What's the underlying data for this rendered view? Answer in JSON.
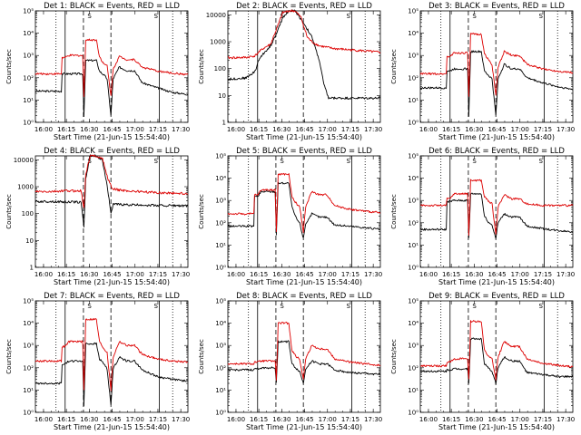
{
  "figure": {
    "xlabel": "Start Time (21-Jun-15 15:54:40)",
    "ylabel": "Counts/sec",
    "x_ticks": [
      "16:00",
      "16:15",
      "16:30",
      "16:45",
      "17:00",
      "17:15",
      "17:30"
    ],
    "x_tick_minutes": [
      5.33,
      20.33,
      35.33,
      50.33,
      65.33,
      80.33,
      95.33
    ],
    "x_range_minutes": [
      0,
      100
    ],
    "solid_lines_minutes": [
      19.5,
      81.2
    ],
    "dashed_lines_minutes": [
      31.5,
      49.5
    ],
    "dotted_lines_minutes": [
      13.5,
      90.0
    ],
    "marker_letters": [
      "S",
      "S"
    ],
    "marker_minutes": [
      35.5,
      79.0
    ],
    "colors": {
      "events": "#000000",
      "lld": "#dd0000",
      "background": "#ffffff"
    }
  },
  "chart_data": [
    {
      "type": "line",
      "scale": "log",
      "ylim": [
        1,
        100000
      ],
      "title": "Det 1: BLACK = Events, RED = LLD",
      "y_tick_values": [
        1,
        10,
        100,
        1000,
        10000,
        100000
      ],
      "y_tick_labels": [
        "10⁰",
        "10¹",
        "10²",
        "10³",
        "10⁴",
        "10⁵"
      ],
      "series": [
        {
          "name": "Events",
          "color": "#000000",
          "x": [
            0,
            17,
            17.5,
            19.5,
            22,
            31,
            31.8,
            33,
            40,
            42,
            45,
            47,
            49.5,
            51,
            55,
            60,
            65,
            70,
            80,
            90,
            100
          ],
          "y": [
            25,
            25,
            150,
            150,
            150,
            150,
            2,
            600,
            600,
            200,
            130,
            90,
            2,
            90,
            300,
            210,
            210,
            60,
            35,
            22,
            18
          ]
        },
        {
          "name": "LLD",
          "color": "#dd0000",
          "x": [
            0,
            17,
            17.5,
            19.5,
            22,
            31,
            31.8,
            33,
            40,
            42,
            45,
            47,
            49.5,
            51,
            55,
            60,
            65,
            70,
            80,
            90,
            100
          ],
          "y": [
            150,
            150,
            800,
            800,
            1000,
            1000,
            15,
            5000,
            5000,
            900,
            400,
            350,
            15,
            250,
            900,
            650,
            650,
            300,
            200,
            160,
            140
          ]
        }
      ]
    },
    {
      "type": "line",
      "scale": "log",
      "ylim": [
        1,
        14000
      ],
      "title": "Det 2: BLACK = Events, RED = LLD",
      "y_tick_values": [
        1,
        10,
        100,
        1000,
        10000
      ],
      "y_tick_labels": [
        "1",
        "10",
        "100",
        "1000",
        "10000"
      ],
      "series": [
        {
          "name": "Events",
          "color": "#000000",
          "x": [
            0,
            12,
            18,
            20,
            24,
            28,
            32,
            36,
            40,
            44,
            48,
            52,
            55,
            60,
            63,
            66,
            70,
            80,
            90,
            100
          ],
          "y": [
            40,
            45,
            80,
            200,
            400,
            700,
            2000,
            8000,
            14000,
            14000,
            7000,
            3000,
            1500,
            200,
            25,
            8,
            8,
            8,
            8,
            8
          ]
        },
        {
          "name": "LLD",
          "color": "#dd0000",
          "x": [
            0,
            12,
            18,
            20,
            24,
            28,
            32,
            36,
            40,
            44,
            48,
            52,
            55,
            60,
            66,
            70,
            80,
            90,
            100
          ],
          "y": [
            250,
            260,
            300,
            400,
            600,
            800,
            3000,
            12000,
            14000,
            14000,
            8000,
            1500,
            1000,
            700,
            600,
            550,
            500,
            450,
            400
          ]
        }
      ]
    },
    {
      "type": "line",
      "scale": "log",
      "ylim": [
        1,
        100000
      ],
      "title": "Det 3: BLACK = Events, RED = LLD",
      "y_tick_values": [
        1,
        10,
        100,
        1000,
        10000,
        100000
      ],
      "y_tick_labels": [
        "10⁰",
        "10¹",
        "10²",
        "10³",
        "10⁴",
        "10⁵"
      ],
      "series": [
        {
          "name": "Events",
          "color": "#000000",
          "x": [
            0,
            17,
            17.5,
            19.5,
            22,
            31,
            31.8,
            33,
            40,
            42,
            45,
            47,
            49.5,
            51,
            55,
            60,
            65,
            70,
            80,
            90,
            100
          ],
          "y": [
            35,
            35,
            200,
            200,
            250,
            250,
            2,
            1500,
            1500,
            200,
            120,
            90,
            2,
            90,
            400,
            250,
            250,
            100,
            60,
            40,
            30
          ]
        },
        {
          "name": "LLD",
          "color": "#dd0000",
          "x": [
            0,
            17,
            17.5,
            19.5,
            22,
            31,
            31.8,
            33,
            40,
            42,
            45,
            47,
            49.5,
            51,
            55,
            60,
            65,
            70,
            80,
            90,
            100
          ],
          "y": [
            150,
            150,
            900,
            900,
            1300,
            1300,
            15,
            9000,
            9000,
            1200,
            600,
            400,
            15,
            300,
            1500,
            1000,
            1000,
            400,
            250,
            200,
            170
          ]
        }
      ]
    },
    {
      "type": "line",
      "scale": "log",
      "ylim": [
        1,
        14000
      ],
      "title": "Det 4: BLACK = Events, RED = LLD",
      "y_tick_values": [
        1,
        10,
        100,
        1000,
        10000
      ],
      "y_tick_labels": [
        "1",
        "10",
        "100",
        "1000",
        "10000"
      ],
      "series": [
        {
          "name": "Events",
          "color": "#000000",
          "x": [
            0,
            10,
            20,
            26,
            30,
            31.8,
            33,
            36,
            40,
            44,
            47,
            49.5,
            51,
            55,
            60,
            70,
            80,
            90,
            100
          ],
          "y": [
            280,
            280,
            270,
            270,
            260,
            30,
            2000,
            14000,
            14000,
            9000,
            1200,
            100,
            220,
            220,
            210,
            210,
            200,
            200,
            190
          ]
        },
        {
          "name": "LLD",
          "color": "#dd0000",
          "x": [
            0,
            10,
            20,
            26,
            30,
            31.8,
            33,
            36,
            40,
            44,
            47,
            50,
            52,
            55,
            60,
            70,
            80,
            90,
            100
          ],
          "y": [
            650,
            650,
            700,
            700,
            700,
            150,
            3000,
            14000,
            14000,
            11000,
            2500,
            900,
            800,
            750,
            700,
            650,
            600,
            580,
            550
          ]
        }
      ]
    },
    {
      "type": "line",
      "scale": "log",
      "ylim": [
        1,
        100000
      ],
      "title": "Det 5: BLACK = Events, RED = LLD",
      "y_tick_values": [
        1,
        10,
        100,
        1000,
        10000,
        100000
      ],
      "y_tick_labels": [
        "10⁰",
        "10¹",
        "10²",
        "10³",
        "10⁴",
        "10⁵"
      ],
      "series": [
        {
          "name": "Events",
          "color": "#000000",
          "x": [
            0,
            17,
            17.5,
            19.5,
            22,
            31,
            31.8,
            33,
            40,
            42,
            45,
            47,
            49.5,
            51,
            55,
            60,
            65,
            70,
            80,
            90,
            100
          ],
          "y": [
            70,
            70,
            1500,
            1500,
            2500,
            2500,
            30,
            6000,
            6000,
            500,
            150,
            100,
            20,
            90,
            250,
            180,
            180,
            80,
            70,
            60,
            50
          ]
        },
        {
          "name": "LLD",
          "color": "#dd0000",
          "x": [
            0,
            17,
            17.5,
            19.5,
            22,
            31,
            31.8,
            33,
            40,
            42,
            45,
            47,
            49.5,
            51,
            55,
            60,
            65,
            70,
            80,
            90,
            100
          ],
          "y": [
            250,
            250,
            1800,
            1800,
            3000,
            3000,
            40,
            15000,
            15000,
            1500,
            700,
            550,
            40,
            500,
            2500,
            1800,
            1800,
            600,
            400,
            330,
            280
          ]
        }
      ]
    },
    {
      "type": "line",
      "scale": "log",
      "ylim": [
        1,
        100000
      ],
      "title": "Det 6: BLACK = Events, RED = LLD",
      "y_tick_values": [
        1,
        10,
        100,
        1000,
        10000,
        100000
      ],
      "y_tick_labels": [
        "10⁰",
        "10¹",
        "10²",
        "10³",
        "10⁴",
        "10⁵"
      ],
      "series": [
        {
          "name": "Events",
          "color": "#000000",
          "x": [
            0,
            17,
            17.5,
            19.5,
            22,
            31,
            31.8,
            33,
            40,
            42,
            45,
            47,
            49.5,
            51,
            55,
            60,
            65,
            70,
            80,
            90,
            100
          ],
          "y": [
            50,
            50,
            900,
            900,
            1000,
            1000,
            20,
            2000,
            2000,
            200,
            100,
            80,
            20,
            100,
            250,
            180,
            180,
            70,
            55,
            45,
            40
          ]
        },
        {
          "name": "LLD",
          "color": "#dd0000",
          "x": [
            0,
            17,
            17.5,
            19.5,
            22,
            31,
            31.8,
            33,
            40,
            42,
            45,
            47,
            49.5,
            51,
            55,
            60,
            65,
            70,
            80,
            90,
            100
          ],
          "y": [
            600,
            600,
            1200,
            1200,
            2000,
            2000,
            30,
            8000,
            8000,
            1500,
            900,
            700,
            30,
            500,
            1800,
            1200,
            1200,
            700,
            600,
            600,
            600
          ]
        }
      ]
    },
    {
      "type": "line",
      "scale": "log",
      "ylim": [
        1,
        100000
      ],
      "title": "Det 7: BLACK = Events, RED = LLD",
      "y_tick_values": [
        1,
        10,
        100,
        1000,
        10000,
        100000
      ],
      "y_tick_labels": [
        "10⁰",
        "10¹",
        "10²",
        "10³",
        "10⁴",
        "10⁵"
      ],
      "series": [
        {
          "name": "Events",
          "color": "#000000",
          "x": [
            0,
            17,
            17.5,
            19.5,
            22,
            31,
            31.8,
            33,
            40,
            42,
            45,
            47,
            49.5,
            51,
            55,
            60,
            65,
            70,
            80,
            90,
            100
          ],
          "y": [
            20,
            20,
            150,
            150,
            200,
            200,
            2,
            1200,
            1200,
            250,
            150,
            90,
            2,
            90,
            300,
            200,
            200,
            80,
            40,
            30,
            25
          ]
        },
        {
          "name": "LLD",
          "color": "#dd0000",
          "x": [
            0,
            17,
            17.5,
            19.5,
            22,
            31,
            31.8,
            33,
            40,
            42,
            45,
            47,
            49.5,
            51,
            55,
            60,
            65,
            70,
            80,
            90,
            100
          ],
          "y": [
            200,
            200,
            900,
            900,
            1500,
            1500,
            10,
            15000,
            15000,
            1500,
            700,
            500,
            10,
            300,
            1500,
            1000,
            1000,
            400,
            250,
            200,
            180
          ]
        }
      ]
    },
    {
      "type": "line",
      "scale": "log",
      "ylim": [
        1,
        100000
      ],
      "title": "Det 8: BLACK = Events, RED = LLD",
      "y_tick_values": [
        1,
        10,
        100,
        1000,
        10000,
        100000
      ],
      "y_tick_labels": [
        "10⁰",
        "10¹",
        "10²",
        "10³",
        "10⁴",
        "10⁵"
      ],
      "series": [
        {
          "name": "Events",
          "color": "#000000",
          "x": [
            0,
            17,
            17.5,
            19.5,
            22,
            31,
            31.8,
            33,
            40,
            42,
            45,
            47,
            49.5,
            51,
            55,
            60,
            65,
            70,
            80,
            90,
            100
          ],
          "y": [
            80,
            80,
            90,
            90,
            100,
            100,
            20,
            1500,
            1500,
            150,
            90,
            70,
            20,
            90,
            200,
            150,
            150,
            80,
            60,
            55,
            50
          ]
        },
        {
          "name": "LLD",
          "color": "#dd0000",
          "x": [
            0,
            17,
            17.5,
            19.5,
            22,
            31,
            31.8,
            33,
            40,
            42,
            45,
            47,
            49.5,
            51,
            55,
            60,
            65,
            70,
            80,
            90,
            100
          ],
          "y": [
            150,
            150,
            180,
            180,
            200,
            200,
            30,
            10000,
            10000,
            600,
            300,
            250,
            30,
            250,
            1000,
            700,
            700,
            250,
            180,
            150,
            130
          ]
        }
      ]
    },
    {
      "type": "line",
      "scale": "log",
      "ylim": [
        1,
        100000
      ],
      "title": "Det 9: BLACK = Events, RED = LLD",
      "y_tick_values": [
        1,
        10,
        100,
        1000,
        10000,
        100000
      ],
      "y_tick_labels": [
        "10⁰",
        "10¹",
        "10²",
        "10³",
        "10⁴",
        "10⁵"
      ],
      "series": [
        {
          "name": "Events",
          "color": "#000000",
          "x": [
            0,
            17,
            17.5,
            19.5,
            22,
            31,
            31.8,
            33,
            40,
            42,
            45,
            47,
            49.5,
            51,
            55,
            60,
            65,
            70,
            80,
            90,
            100
          ],
          "y": [
            70,
            70,
            80,
            80,
            90,
            90,
            20,
            2000,
            2000,
            150,
            90,
            70,
            20,
            100,
            300,
            200,
            200,
            60,
            50,
            40,
            40
          ]
        },
        {
          "name": "LLD",
          "color": "#dd0000",
          "x": [
            0,
            17,
            17.5,
            19.5,
            22,
            31,
            31.8,
            33,
            40,
            42,
            45,
            47,
            49.5,
            51,
            55,
            60,
            65,
            70,
            80,
            90,
            100
          ],
          "y": [
            120,
            120,
            180,
            180,
            250,
            250,
            30,
            12000,
            12000,
            600,
            300,
            250,
            30,
            300,
            1500,
            900,
            900,
            250,
            160,
            130,
            110
          ]
        }
      ]
    }
  ]
}
